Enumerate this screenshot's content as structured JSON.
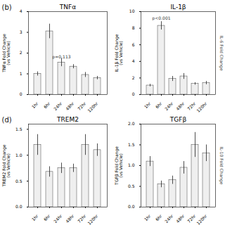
{
  "chart_data": [
    {
      "type": "bar",
      "panel_label": "(b)",
      "title": "TNFα",
      "ylabel": "TNFα Fold Change\n(vs Vehicle)",
      "categories": [
        "1hr",
        "6hr",
        "24hr",
        "48hr",
        "72hr",
        "120hr"
      ],
      "values": [
        1.0,
        3.05,
        1.55,
        1.35,
        0.95,
        0.8
      ],
      "errors": [
        0.1,
        0.35,
        0.2,
        0.1,
        0.12,
        0.08
      ],
      "color": "#efefef",
      "ylim": [
        0,
        4
      ],
      "yticks": [
        0,
        1,
        2,
        3,
        4
      ],
      "annotations": [
        {
          "text": "p=0.113",
          "x": "24hr",
          "y": 1.75
        }
      ]
    },
    {
      "type": "bar",
      "title": "IL-1β",
      "ylabel": "IL-1β Fold Change\n(vs Vehicle)",
      "y2label": "IL-6 Fold Change",
      "categories": [
        "1hr",
        "6hr",
        "24hr",
        "48hr",
        "72hr",
        "120hr"
      ],
      "values": [
        1.1,
        8.3,
        1.9,
        2.2,
        1.3,
        1.4
      ],
      "errors": [
        0.15,
        0.5,
        0.3,
        0.35,
        0.15,
        0.2
      ],
      "color": "#efefef",
      "ylim": [
        0,
        10
      ],
      "yticks": [
        0,
        2,
        4,
        6,
        8,
        10
      ],
      "annotations": [
        {
          "text": "p<0.001",
          "x": "6hr",
          "y": 9.0
        }
      ]
    },
    {
      "type": "bar",
      "panel_label": "(d)",
      "title": "TREM2",
      "ylabel": "TREM2 Fold Change\n(vs Vehicle)",
      "categories": [
        "1hr",
        "6hr",
        "24hr",
        "48hr",
        "72hr",
        "120hr"
      ],
      "values": [
        1.2,
        0.68,
        0.75,
        0.75,
        1.2,
        1.1
      ],
      "errors": [
        0.2,
        0.1,
        0.1,
        0.08,
        0.2,
        0.12
      ],
      "color": "#efefef",
      "ylim": [
        0,
        1.6
      ],
      "yticks": [
        {
          "value": 0.0,
          "label": "0.0"
        },
        0.5,
        {
          "value": 1.0,
          "label": "1.0"
        },
        1.5
      ]
    },
    {
      "type": "bar",
      "title": "TGFβ",
      "ylabel": "TGFβ Fold Change\n(vs Vehicle)",
      "y2label": "IL-10 Fold Change",
      "categories": [
        "1hr",
        "6hr",
        "24hr",
        "48hr",
        "72hr",
        "120hr"
      ],
      "values": [
        1.1,
        0.55,
        0.65,
        0.95,
        1.5,
        1.3
      ],
      "errors": [
        0.12,
        0.08,
        0.1,
        0.15,
        0.3,
        0.2
      ],
      "color": "#efefef",
      "ylim": [
        0,
        2.0
      ],
      "yticks": [
        {
          "value": 0.0,
          "label": "0.0"
        },
        0.5,
        {
          "value": 1.0,
          "label": "1.0"
        },
        1.5,
        {
          "value": 2.0,
          "label": "2.0"
        }
      ]
    }
  ]
}
